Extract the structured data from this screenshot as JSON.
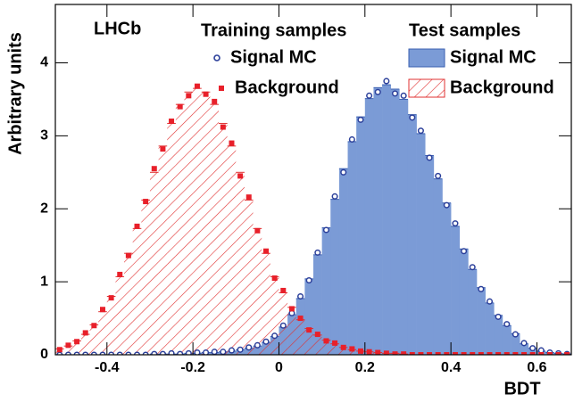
{
  "chart_data": {
    "type": "histogram",
    "annotation": "LHCb",
    "xlabel": "BDT",
    "ylabel": "Arbitrary units",
    "legend_titles": [
      "Training samples",
      "Test samples"
    ],
    "xlim": [
      -0.52,
      0.68
    ],
    "ylim": [
      0,
      4.8
    ],
    "xticks": [
      -0.4,
      -0.2,
      0,
      0.2,
      0.4,
      0.6
    ],
    "yticks": [
      0,
      1,
      2,
      3,
      4
    ],
    "bins": [
      -0.52,
      -0.5,
      -0.48,
      -0.46,
      -0.44,
      -0.42,
      -0.4,
      -0.38,
      -0.36,
      -0.34,
      -0.32,
      -0.3,
      -0.28,
      -0.26,
      -0.24,
      -0.22,
      -0.2,
      -0.18,
      -0.16,
      -0.14,
      -0.12,
      -0.1,
      -0.08,
      -0.06,
      -0.04,
      -0.02,
      0,
      0.02,
      0.04,
      0.06,
      0.08,
      0.1,
      0.12,
      0.14,
      0.16,
      0.18,
      0.2,
      0.22,
      0.24,
      0.26,
      0.28,
      0.3,
      0.32,
      0.34,
      0.36,
      0.38,
      0.4,
      0.42,
      0.44,
      0.46,
      0.48,
      0.5,
      0.52,
      0.54,
      0.56,
      0.58,
      0.6,
      0.62,
      0.64,
      0.66,
      0.68
    ],
    "series": [
      {
        "name": "Signal MC",
        "style": "filled",
        "color": "#7b9bd6",
        "edge": "#3a5fb0",
        "values": [
          0,
          0,
          0,
          0,
          0,
          0,
          0,
          0,
          0,
          0,
          0,
          0.01,
          0.01,
          0.01,
          0.01,
          0.02,
          0.02,
          0.03,
          0.03,
          0.04,
          0.05,
          0.07,
          0.09,
          0.12,
          0.17,
          0.25,
          0.38,
          0.55,
          0.77,
          1.04,
          1.37,
          1.74,
          2.13,
          2.55,
          2.92,
          3.26,
          3.51,
          3.66,
          3.7,
          3.64,
          3.5,
          3.29,
          3.03,
          2.73,
          2.41,
          2.08,
          1.76,
          1.45,
          1.17,
          0.92,
          0.71,
          0.54,
          0.4,
          0.29,
          0.15,
          0.09,
          0.05,
          0.03,
          0.02,
          0.01
        ]
      },
      {
        "name": "Background",
        "style": "hatched",
        "color": "#e03030",
        "values": [
          0.08,
          0.12,
          0.19,
          0.28,
          0.41,
          0.59,
          0.8,
          1.07,
          1.39,
          1.73,
          2.12,
          2.5,
          2.86,
          3.17,
          3.43,
          3.6,
          3.65,
          3.6,
          3.43,
          3.17,
          2.86,
          2.5,
          2.12,
          1.73,
          1.39,
          1.07,
          0.85,
          0.65,
          0.48,
          0.36,
          0.27,
          0.2,
          0.15,
          0.1,
          0.07,
          0.05,
          0.04,
          0.03,
          0.02,
          0.02,
          0.01,
          0,
          0,
          0,
          0,
          0,
          0,
          0,
          0,
          0,
          0,
          0,
          0,
          0,
          0,
          0,
          0,
          0,
          0,
          0
        ]
      },
      {
        "name": "Signal MC",
        "style": "circles",
        "color": "#2b3f9a",
        "values": [
          0,
          0,
          0,
          0,
          0,
          0,
          0,
          0,
          0,
          0,
          0,
          0.01,
          0.01,
          0.02,
          0.01,
          0.02,
          0.03,
          0.03,
          0.04,
          0.04,
          0.06,
          0.07,
          0.1,
          0.13,
          0.18,
          0.26,
          0.4,
          0.57,
          0.8,
          1.02,
          1.4,
          1.71,
          2.17,
          2.5,
          2.95,
          3.22,
          3.55,
          3.6,
          3.75,
          3.58,
          3.55,
          3.25,
          3.07,
          2.7,
          2.45,
          2.05,
          1.8,
          1.42,
          1.2,
          0.9,
          0.73,
          0.52,
          0.42,
          0.28,
          0.16,
          0.09,
          0.06,
          0.03,
          0.02,
          0.01
        ]
      },
      {
        "name": "Background",
        "style": "squares",
        "color": "#e8202a",
        "values": [
          0.07,
          0.13,
          0.18,
          0.3,
          0.4,
          0.62,
          0.78,
          1.1,
          1.36,
          1.76,
          2.1,
          2.55,
          2.82,
          3.2,
          3.4,
          3.55,
          3.68,
          3.57,
          3.47,
          3.12,
          2.9,
          2.45,
          2.16,
          1.7,
          1.42,
          1.05,
          0.88,
          0.63,
          0.5,
          0.34,
          0.28,
          0.19,
          0.16,
          0.1,
          0.08,
          0.05,
          0.04,
          0.03,
          0.02,
          0.01,
          0.01,
          0,
          0,
          0,
          0,
          0,
          0,
          0,
          0,
          0,
          0,
          0,
          0,
          0,
          0,
          0,
          0,
          0,
          0,
          0
        ]
      }
    ]
  }
}
